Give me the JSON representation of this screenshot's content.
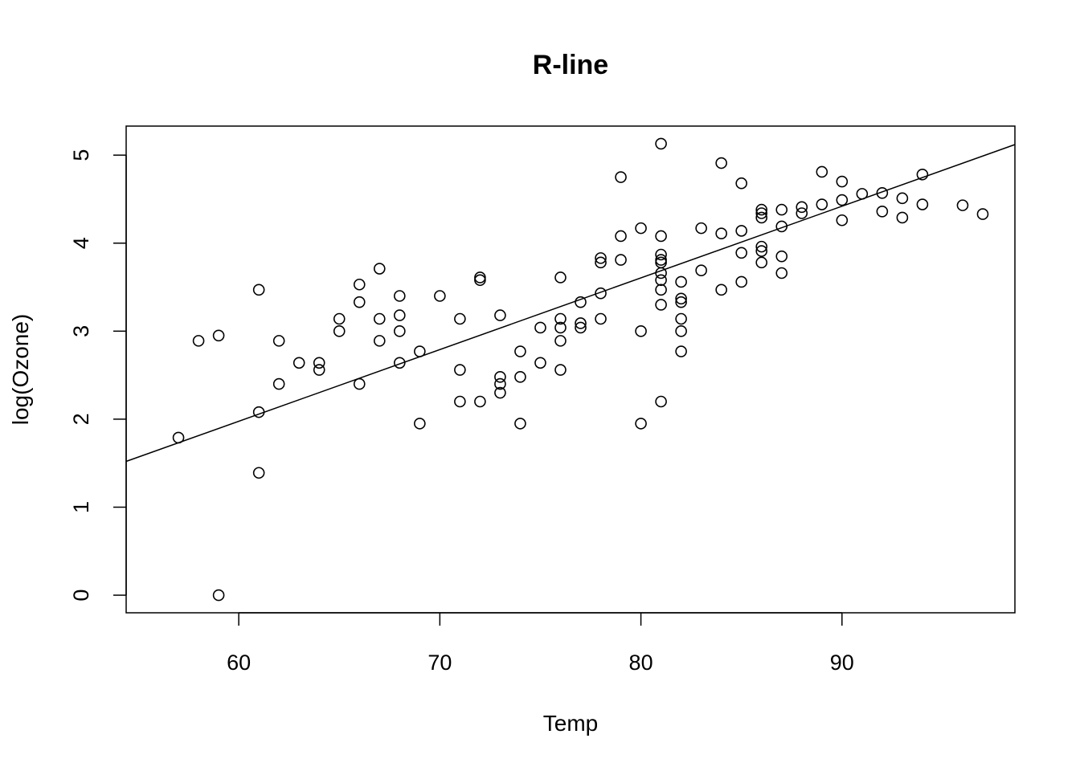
{
  "chart_data": {
    "type": "scatter",
    "title": "R-line",
    "xlabel": "Temp",
    "ylabel": "log(Ozone)",
    "xlim": [
      54.4,
      98.6
    ],
    "ylim": [
      -0.2,
      5.33
    ],
    "xticks": [
      60,
      70,
      80,
      90
    ],
    "yticks": [
      0,
      1,
      2,
      3,
      4,
      5
    ],
    "grid": false,
    "legend": "none",
    "fit_line": {
      "x1": 54.4,
      "y1": 1.52,
      "x2": 98.6,
      "y2": 5.12
    },
    "points": [
      [
        57,
        1.79
      ],
      [
        58,
        2.89
      ],
      [
        59,
        2.95
      ],
      [
        59,
        0.0
      ],
      [
        61,
        3.47
      ],
      [
        61,
        2.08
      ],
      [
        61,
        1.39
      ],
      [
        62,
        2.89
      ],
      [
        62,
        2.4
      ],
      [
        63,
        2.64
      ],
      [
        64,
        2.64
      ],
      [
        64,
        2.56
      ],
      [
        65,
        3.14
      ],
      [
        65,
        3.0
      ],
      [
        66,
        3.53
      ],
      [
        66,
        3.33
      ],
      [
        66,
        2.4
      ],
      [
        67,
        3.71
      ],
      [
        67,
        3.14
      ],
      [
        67,
        2.89
      ],
      [
        68,
        3.4
      ],
      [
        68,
        3.18
      ],
      [
        68,
        3.0
      ],
      [
        68,
        2.64
      ],
      [
        69,
        2.77
      ],
      [
        69,
        1.95
      ],
      [
        70,
        3.4
      ],
      [
        71,
        3.14
      ],
      [
        71,
        2.56
      ],
      [
        71,
        2.2
      ],
      [
        72,
        3.61
      ],
      [
        72,
        3.58
      ],
      [
        72,
        2.2
      ],
      [
        73,
        3.18
      ],
      [
        73,
        2.48
      ],
      [
        73,
        2.4
      ],
      [
        73,
        2.3
      ],
      [
        74,
        2.77
      ],
      [
        74,
        2.48
      ],
      [
        74,
        1.95
      ],
      [
        75,
        3.04
      ],
      [
        75,
        2.64
      ],
      [
        76,
        3.61
      ],
      [
        76,
        3.14
      ],
      [
        76,
        3.04
      ],
      [
        76,
        2.89
      ],
      [
        76,
        2.56
      ],
      [
        77,
        3.33
      ],
      [
        77,
        3.09
      ],
      [
        77,
        3.04
      ],
      [
        78,
        3.83
      ],
      [
        78,
        3.78
      ],
      [
        78,
        3.43
      ],
      [
        78,
        3.14
      ],
      [
        79,
        4.75
      ],
      [
        79,
        4.08
      ],
      [
        79,
        3.81
      ],
      [
        80,
        4.17
      ],
      [
        80,
        3.0
      ],
      [
        80,
        1.95
      ],
      [
        81,
        5.13
      ],
      [
        81,
        4.08
      ],
      [
        81,
        3.87
      ],
      [
        81,
        3.81
      ],
      [
        81,
        3.78
      ],
      [
        81,
        3.66
      ],
      [
        81,
        3.58
      ],
      [
        81,
        3.47
      ],
      [
        81,
        3.3
      ],
      [
        81,
        2.2
      ],
      [
        82,
        3.56
      ],
      [
        82,
        3.37
      ],
      [
        82,
        3.33
      ],
      [
        82,
        3.14
      ],
      [
        82,
        3.0
      ],
      [
        82,
        2.77
      ],
      [
        83,
        4.17
      ],
      [
        83,
        3.69
      ],
      [
        84,
        4.91
      ],
      [
        84,
        4.11
      ],
      [
        84,
        3.47
      ],
      [
        85,
        4.68
      ],
      [
        85,
        4.14
      ],
      [
        85,
        3.89
      ],
      [
        85,
        3.56
      ],
      [
        86,
        4.38
      ],
      [
        86,
        4.34
      ],
      [
        86,
        4.29
      ],
      [
        86,
        3.96
      ],
      [
        86,
        3.91
      ],
      [
        86,
        3.78
      ],
      [
        87,
        4.38
      ],
      [
        87,
        4.19
      ],
      [
        87,
        3.85
      ],
      [
        87,
        3.66
      ],
      [
        88,
        4.41
      ],
      [
        88,
        4.34
      ],
      [
        89,
        4.81
      ],
      [
        89,
        4.44
      ],
      [
        90,
        4.7
      ],
      [
        90,
        4.49
      ],
      [
        90,
        4.26
      ],
      [
        91,
        4.56
      ],
      [
        92,
        4.57
      ],
      [
        92,
        4.36
      ],
      [
        93,
        4.51
      ],
      [
        93,
        4.29
      ],
      [
        94,
        4.78
      ],
      [
        94,
        4.44
      ],
      [
        96,
        4.43
      ],
      [
        97,
        4.33
      ]
    ]
  }
}
